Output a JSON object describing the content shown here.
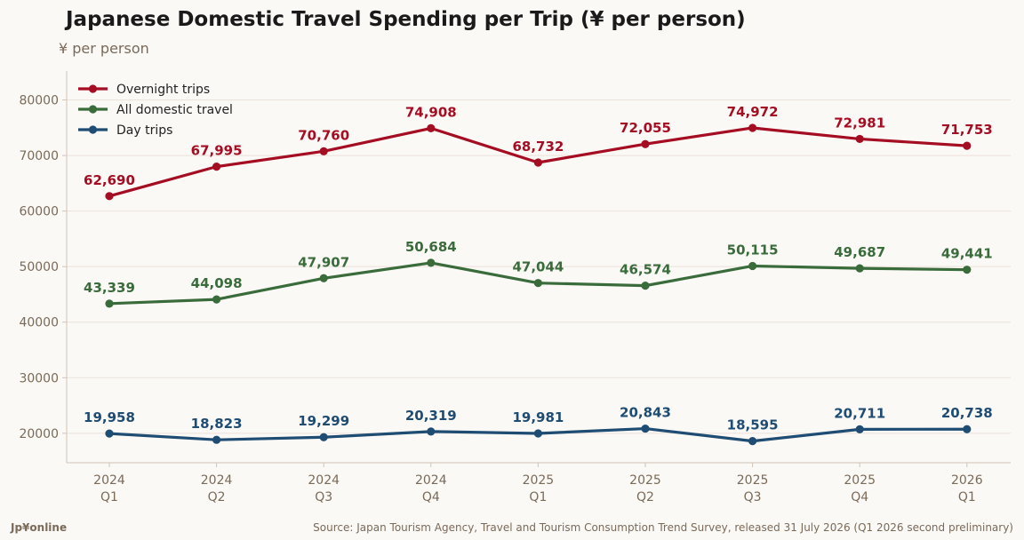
{
  "header": {
    "title": "Japanese Domestic Travel Spending per Trip (¥ per person)",
    "subtitle": "¥ per person"
  },
  "footer": {
    "logo": "Jp¥online",
    "source": "Source: Japan Tourism Agency, Travel and Tourism Consumption Trend Survey, released 31 July 2026 (Q1 2026 second preliminary)"
  },
  "chart_data": {
    "type": "line",
    "title": "Japanese Domestic Travel Spending per Trip (¥ per person)",
    "ylabel": "¥ per person",
    "xlabel": "",
    "categories": [
      [
        "2024",
        "Q1"
      ],
      [
        "2024",
        "Q2"
      ],
      [
        "2024",
        "Q3"
      ],
      [
        "2024",
        "Q4"
      ],
      [
        "2025",
        "Q1"
      ],
      [
        "2025",
        "Q2"
      ],
      [
        "2025",
        "Q3"
      ],
      [
        "2025",
        "Q4"
      ],
      [
        "2026",
        "Q1"
      ]
    ],
    "ylim": [
      14700,
      85200
    ],
    "yticks": [
      20000,
      30000,
      40000,
      50000,
      60000,
      70000,
      80000
    ],
    "grid": "horizontal",
    "legend": "top-left",
    "series": [
      {
        "name": "Overnight trips",
        "color": "#a50d22",
        "values": [
          62690,
          67995,
          70760,
          74908,
          68732,
          72055,
          74972,
          72981,
          71753
        ],
        "labels": [
          "62,690",
          "67,995",
          "70,760",
          "74,908",
          "68,732",
          "72,055",
          "74,972",
          "72,981",
          "71,753"
        ]
      },
      {
        "name": "All domestic travel",
        "color": "#3a6b3b",
        "values": [
          43339,
          44098,
          47907,
          50684,
          47044,
          46574,
          50115,
          49687,
          49441
        ],
        "labels": [
          "43,339",
          "44,098",
          "47,907",
          "50,684",
          "47,044",
          "46,574",
          "50,115",
          "49,687",
          "49,441"
        ]
      },
      {
        "name": "Day trips",
        "color": "#1f4c73",
        "values": [
          19958,
          18823,
          19299,
          20319,
          19981,
          20843,
          18595,
          20711,
          20738
        ],
        "labels": [
          "19,958",
          "18,823",
          "19,299",
          "20,319",
          "19,981",
          "20,843",
          "18,595",
          "20,711",
          "20,738"
        ]
      }
    ]
  }
}
